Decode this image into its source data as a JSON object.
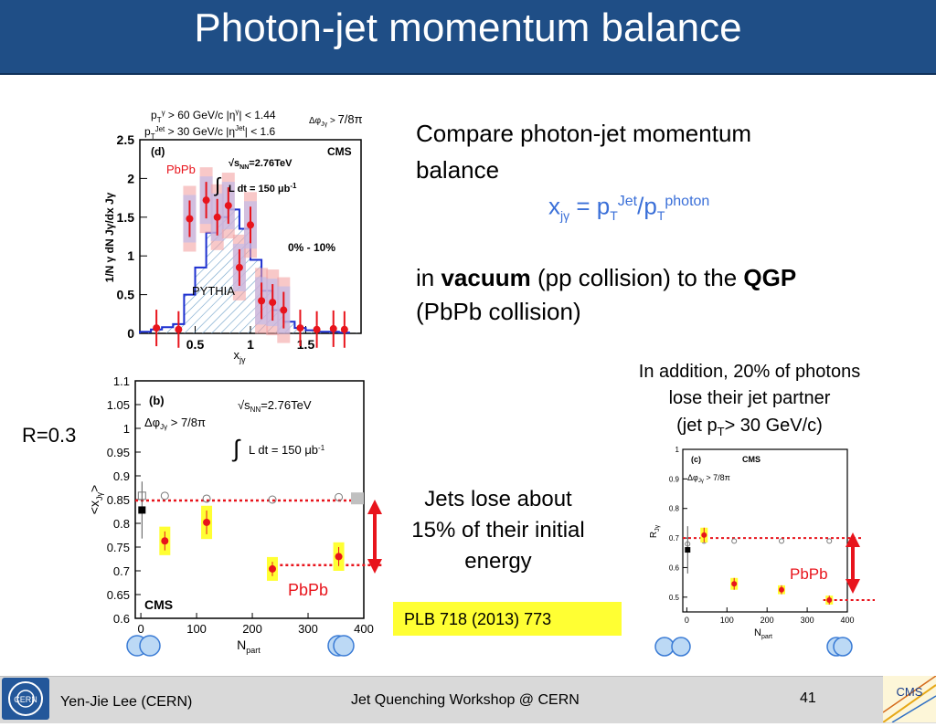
{
  "title": "Photon-jet momentum balance",
  "text": {
    "compare_line1": "Compare photon-jet momentum",
    "compare_line2": "balance",
    "formula_x": "x",
    "formula_x_sub": "jγ",
    "formula_eq": " = p",
    "formula_T1": "T",
    "formula_jet": "Jet",
    "formula_slash": "/p",
    "formula_T2": "T",
    "formula_photon": "photon",
    "in_word": "in ",
    "vacuum": "vacuum",
    "pp_text": " (pp collision) to the ",
    "qgp": "QGP",
    "pbpb_collision": "(PbPb collision)",
    "addition_line1": "In addition, 20% of photons",
    "addition_line2": "lose their jet partner",
    "addition_line3a": "(jet p",
    "addition_line3_sub": "T",
    "addition_line3b": "> 30 GeV/c)",
    "r_label": "R=0.3",
    "jets_line1": "Jets lose about",
    "jets_line2": "15% of their initial",
    "jets_line3": "energy",
    "plb": "PLB 718 (2013) 773"
  },
  "footer": {
    "author": "Yen-Jie Lee (CERN)",
    "center": "Jet Quenching Workshop @ CERN",
    "page": "41"
  },
  "colors": {
    "title_bg": "#1f4e86",
    "accent_blue": "#3a6fd8",
    "red": "#e8141c",
    "highlight_yellow": "#ffff33"
  },
  "chart_data": [
    {
      "type": "bar",
      "panel": "(d)",
      "experiment": "CMS",
      "cuts": [
        "p_T^γ > 60 GeV/c",
        "|η^γ| < 1.44",
        "p_T^Jet > 30 GeV/c",
        "|η^Jet| < 1.6",
        "Δφ_Jγ > 7/8π"
      ],
      "annotations": [
        "√s_NN=2.76TeV",
        "∫ L dt = 150 μb⁻¹",
        "0% - 10%",
        "PbPb",
        "PYTHIA"
      ],
      "xlabel": "x_Jγ",
      "ylabel": "1/N^γ dN^Jγ/dx_Jγ",
      "xlim": [
        0,
        2
      ],
      "ylim": [
        0,
        2.5
      ],
      "x_ticks": [
        0.5,
        1,
        1.5
      ],
      "y_ticks": [
        0,
        0.5,
        1,
        1.5,
        2,
        2.5
      ],
      "series": [
        {
          "name": "PYTHIA",
          "bin_edges": [
            0,
            0.1,
            0.2,
            0.3,
            0.4,
            0.5,
            0.6,
            0.7,
            0.8,
            0.9,
            1.0,
            1.1,
            1.2,
            1.3,
            1.4,
            1.5,
            1.6,
            1.7,
            1.8,
            1.9
          ],
          "values": [
            0.02,
            0.05,
            0.08,
            0.12,
            0.5,
            0.85,
            1.3,
            1.5,
            1.6,
            1.35,
            0.95,
            0.55,
            0.3,
            0.15,
            0.07,
            0.04,
            0.02,
            0.02,
            0.01
          ]
        },
        {
          "name": "PbPb",
          "x": [
            0.15,
            0.35,
            0.45,
            0.6,
            0.7,
            0.8,
            0.9,
            1.0,
            1.1,
            1.2,
            1.3,
            1.45,
            1.6,
            1.75,
            1.85
          ],
          "y": [
            0.07,
            0.05,
            1.48,
            1.72,
            1.5,
            1.65,
            0.85,
            1.4,
            0.42,
            0.4,
            0.3,
            0.07,
            0.05,
            0.06,
            0.05
          ],
          "sys_box": [
            false,
            false,
            true,
            true,
            true,
            true,
            true,
            true,
            true,
            true,
            true,
            false,
            false,
            false,
            false
          ]
        }
      ]
    },
    {
      "type": "scatter",
      "panel": "(b)",
      "experiment": "CMS",
      "annotations": [
        "√s_NN=2.76TeV",
        "Δφ_Jγ > 7/8π",
        "∫ L dt = 150 μb⁻¹",
        "PbPb"
      ],
      "xlabel": "N_part",
      "ylabel": "<x_Jγ>",
      "xlim": [
        -10,
        400
      ],
      "ylim": [
        0.6,
        1.1
      ],
      "x_ticks": [
        0,
        100,
        200,
        300,
        400
      ],
      "y_ticks": [
        0.6,
        0.65,
        0.7,
        0.75,
        0.8,
        0.85,
        0.9,
        0.95,
        1,
        1.05,
        1.1
      ],
      "series": [
        {
          "name": "pp",
          "x": [
            2
          ],
          "y": [
            0.828
          ],
          "err": [
            0.06
          ]
        },
        {
          "name": "PYTHIA",
          "x": [
            2,
            43,
            118,
            236,
            355
          ],
          "y": [
            0.858,
            0.858,
            0.852,
            0.85,
            0.855
          ]
        },
        {
          "name": "PbPb",
          "x": [
            43,
            118,
            236,
            355
          ],
          "y": [
            0.763,
            0.802,
            0.704,
            0.73
          ],
          "err": [
            0.02,
            0.025,
            0.015,
            0.02
          ]
        }
      ],
      "reference_lines": [
        0.848,
        0.712
      ]
    },
    {
      "type": "scatter",
      "panel": "(c)",
      "experiment": "CMS",
      "annotations": [
        "Δφ_Jγ > 7/8π",
        "PbPb"
      ],
      "xlabel": "N_part",
      "ylabel": "R_Jγ",
      "xlim": [
        -10,
        400
      ],
      "ylim": [
        0.45,
        1
      ],
      "x_ticks": [
        0,
        100,
        200,
        300,
        400
      ],
      "y_ticks": [
        0.5,
        0.6,
        0.7,
        0.8,
        0.9,
        1
      ],
      "series": [
        {
          "name": "pp",
          "x": [
            2
          ],
          "y": [
            0.66
          ],
          "err": [
            0.08
          ]
        },
        {
          "name": "PYTHIA",
          "x": [
            2,
            43,
            118,
            236,
            355
          ],
          "y": [
            0.68,
            0.69,
            0.69,
            0.69,
            0.69
          ]
        },
        {
          "name": "PbPb",
          "x": [
            43,
            118,
            236,
            355
          ],
          "y": [
            0.71,
            0.545,
            0.525,
            0.49
          ],
          "err": [
            0.025,
            0.02,
            0.015,
            0.015
          ]
        }
      ],
      "reference_lines": [
        0.7,
        0.49
      ]
    }
  ]
}
